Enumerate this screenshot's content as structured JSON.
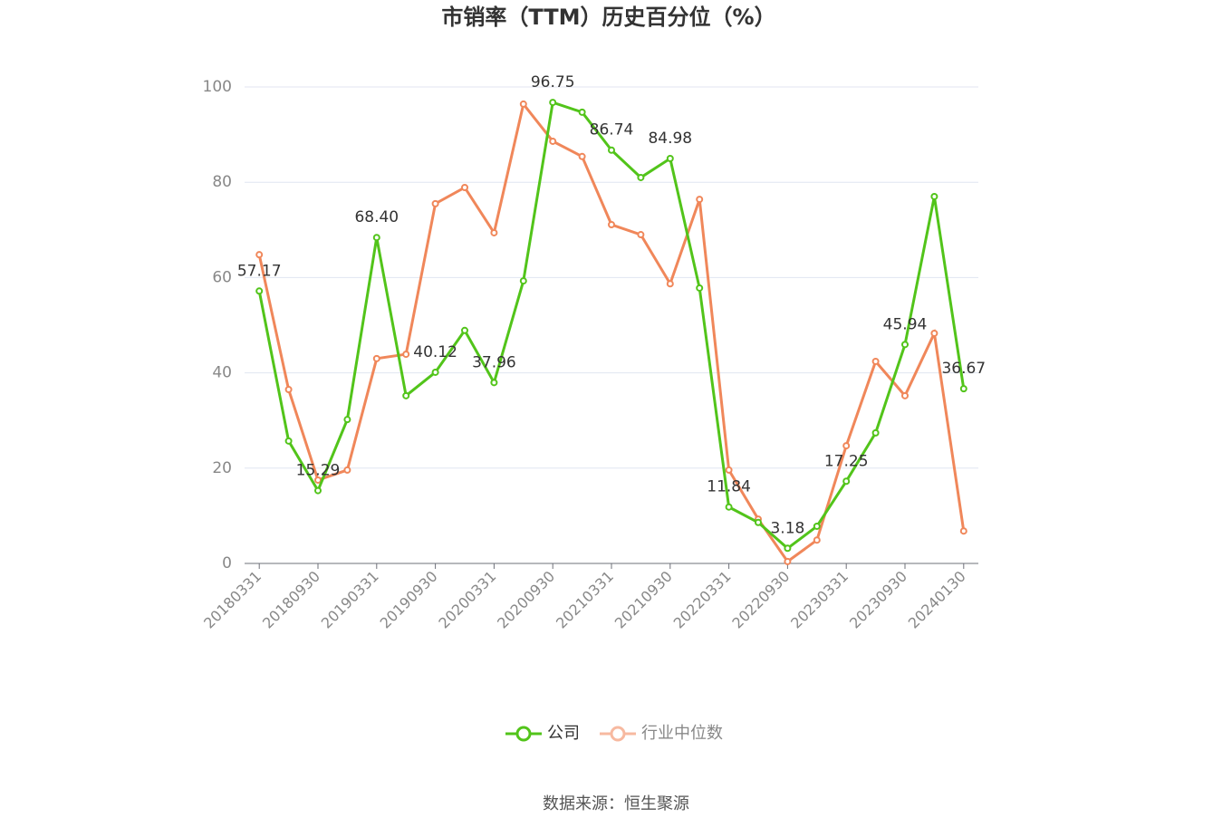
{
  "chart_data": {
    "type": "line",
    "title": "市销率（TTM）历史百分位（%）",
    "source": "数据来源：恒生聚源",
    "categories": [
      "20180331",
      null,
      "20180930",
      null,
      "20190331",
      null,
      "20190930",
      null,
      "20200331",
      null,
      "20200930",
      null,
      "20210331",
      null,
      "20210930",
      null,
      "20220331",
      null,
      "20220930",
      null,
      "20230331",
      null,
      "20230930",
      null,
      "20240130"
    ],
    "series": [
      {
        "name": "公司",
        "color": "#52c41a",
        "values": [
          57.17,
          25.7,
          15.29,
          30.2,
          68.4,
          35.2,
          40.12,
          48.9,
          37.96,
          59.3,
          96.75,
          94.7,
          86.74,
          81.0,
          84.98,
          57.8,
          11.84,
          8.6,
          3.18,
          7.8,
          17.25,
          27.4,
          45.94,
          77.0,
          36.67
        ],
        "value_labels": [
          "57.17",
          null,
          "15.29",
          null,
          "68.40",
          null,
          "40.12",
          null,
          "37.96",
          null,
          "96.75",
          null,
          "86.74",
          null,
          "84.98",
          null,
          "11.84",
          null,
          "3.18",
          null,
          "17.25",
          null,
          "45.94",
          null,
          "36.67"
        ]
      },
      {
        "name": "行业中位数",
        "color": "#f0875a",
        "values": [
          64.8,
          36.5,
          17.5,
          19.6,
          43.0,
          43.9,
          75.5,
          78.9,
          69.4,
          96.4,
          88.6,
          85.4,
          71.1,
          69.0,
          58.7,
          76.4,
          19.6,
          9.3,
          0.4,
          4.9,
          24.7,
          42.4,
          35.2,
          48.3,
          6.8
        ]
      }
    ],
    "ylim": [
      0,
      100
    ],
    "yticks": [
      0,
      20,
      40,
      60,
      80,
      100
    ],
    "grid": true
  }
}
